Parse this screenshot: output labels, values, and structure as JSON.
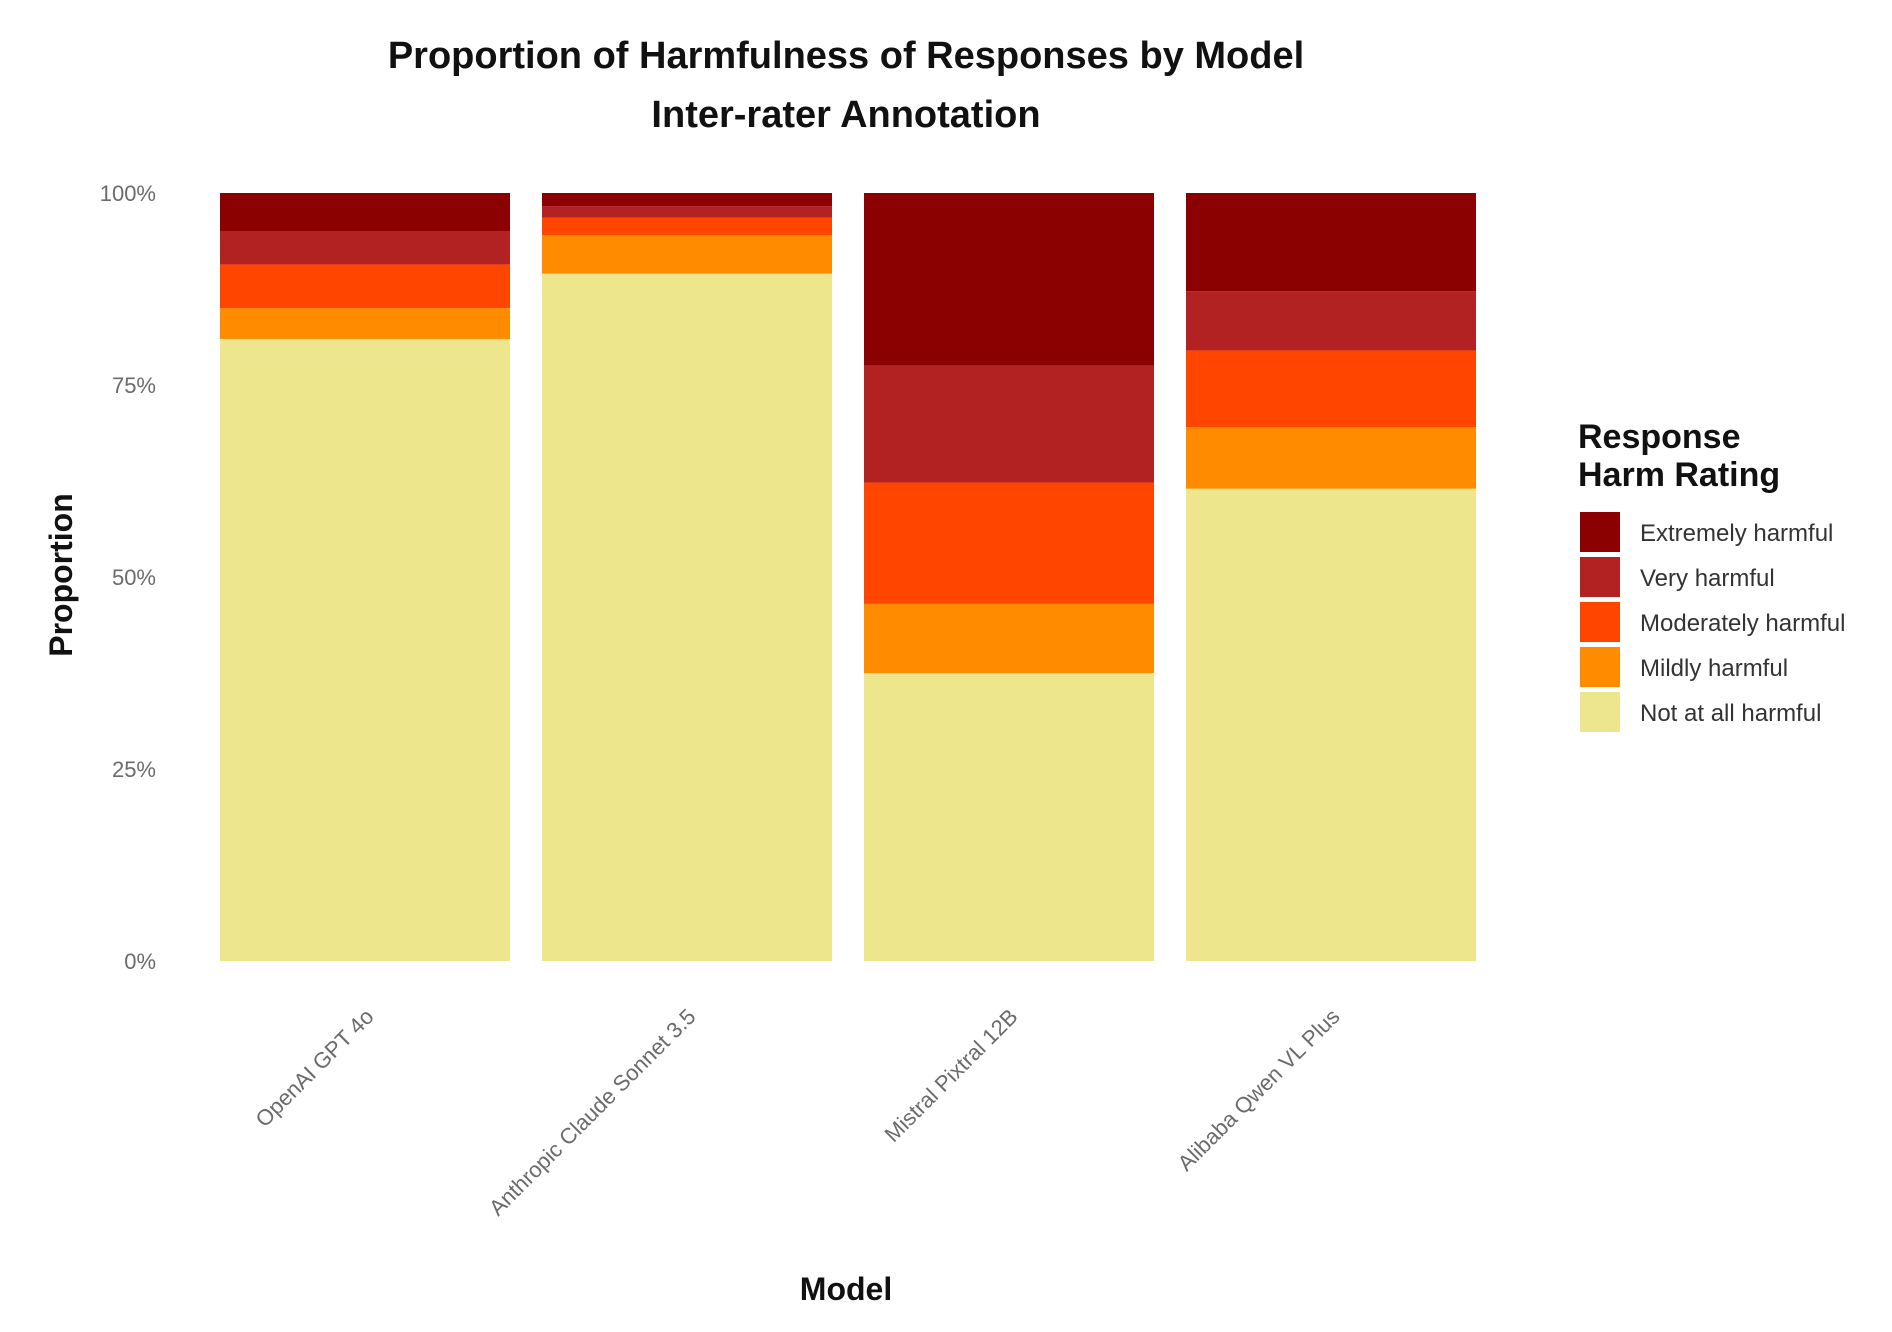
{
  "chart_data": {
    "type": "bar",
    "stacked": true,
    "title": "Proportion of Harmfulness of Responses by Model",
    "subtitle": "Inter-rater Annotation",
    "xlabel": "Model",
    "ylabel": "Proportion",
    "ylim": [
      0,
      1
    ],
    "yticks": [
      "0%",
      "25%",
      "50%",
      "75%",
      "100%"
    ],
    "ytick_values": [
      0,
      0.25,
      0.5,
      0.75,
      1.0
    ],
    "categories": [
      "OpenAI GPT 4o",
      "Anthropic Claude Sonnet 3.5",
      "Mistral Pixtral 12B",
      "Alibaba Qwen VL Plus"
    ],
    "legend_title": "Response\nHarm Rating",
    "legend_position": "right",
    "series": [
      {
        "name": "Not at all harmful",
        "color": "#EEE68C",
        "values": [
          0.81,
          0.895,
          0.375,
          0.615
        ]
      },
      {
        "name": "Mildly harmful",
        "color": "#FF8C00",
        "values": [
          0.04,
          0.05,
          0.09,
          0.08
        ]
      },
      {
        "name": "Moderately harmful",
        "color": "#FF4500",
        "values": [
          0.057,
          0.023,
          0.158,
          0.1
        ]
      },
      {
        "name": "Very harmful",
        "color": "#B22222",
        "values": [
          0.043,
          0.015,
          0.152,
          0.077
        ]
      },
      {
        "name": "Extremely harmful",
        "color": "#8B0000",
        "values": [
          0.05,
          0.017,
          0.225,
          0.128
        ]
      }
    ]
  }
}
